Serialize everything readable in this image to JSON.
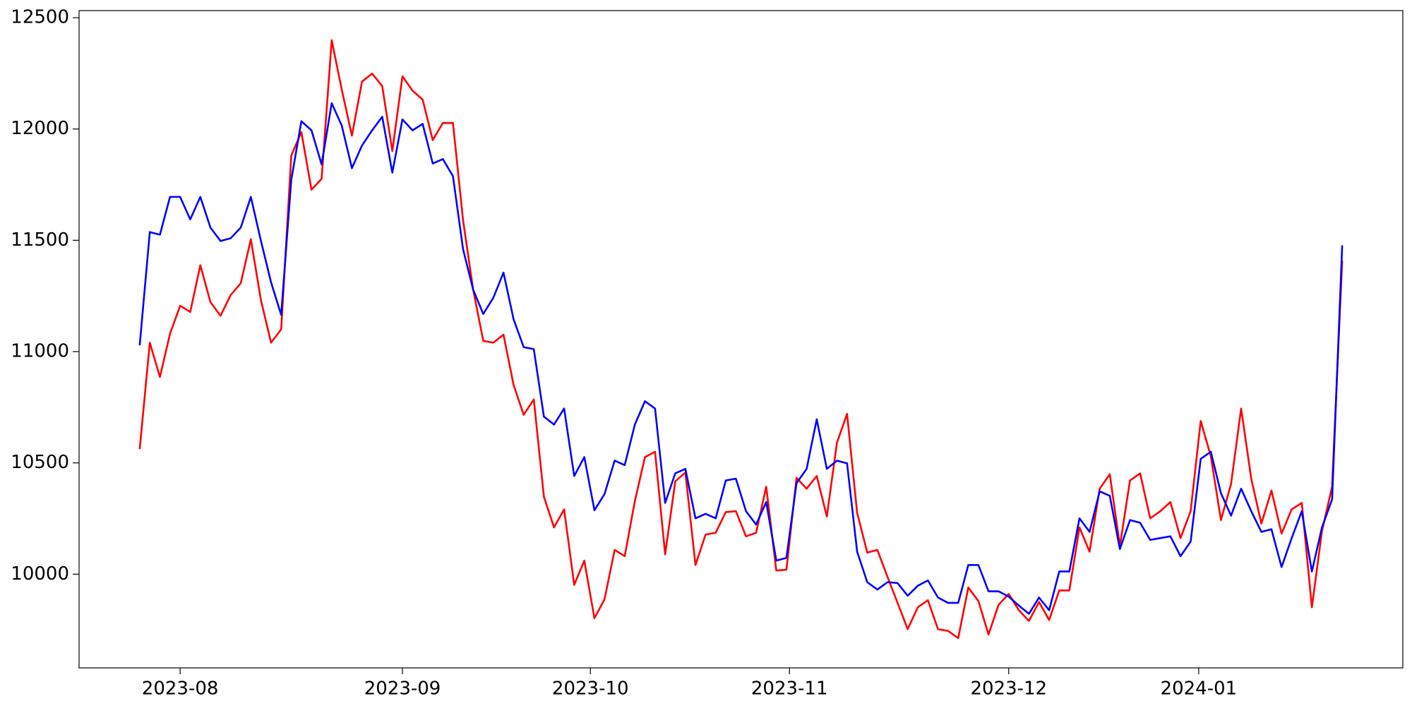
{
  "chart_data": {
    "type": "line",
    "categories": [
      null,
      null,
      null,
      null,
      null,
      null,
      null,
      null,
      null,
      null,
      null,
      null,
      null,
      null,
      null,
      null,
      null,
      null,
      null,
      null,
      null,
      null,
      null,
      null,
      null,
      null,
      null,
      null,
      null,
      null,
      null,
      null,
      null,
      null,
      null,
      null,
      null,
      null,
      null,
      null,
      null,
      null,
      null,
      null,
      null,
      null,
      null,
      null,
      null,
      null,
      null,
      null,
      null,
      null,
      null,
      null,
      null,
      null,
      null,
      null,
      null,
      null,
      null,
      null,
      null,
      null,
      null,
      null,
      null,
      null,
      null,
      null,
      null,
      null,
      null,
      null,
      null,
      null,
      null,
      null,
      null,
      null,
      null,
      null,
      null,
      null,
      null,
      null,
      null,
      null,
      null,
      null,
      null,
      null,
      null,
      null,
      null,
      null,
      null,
      null,
      null,
      null,
      null,
      null,
      null,
      null,
      null,
      null,
      null,
      null,
      null,
      null,
      null,
      null,
      null,
      null,
      null,
      null,
      null,
      null
    ],
    "series": [
      {
        "color": "#ff0000",
        "values": [
          10562,
          11040,
          10886,
          11080,
          11206,
          11178,
          11388,
          11222,
          11161,
          11254,
          11307,
          11505,
          11230,
          11040,
          11100,
          11881,
          11986,
          11727,
          11776,
          12399,
          12176,
          11970,
          12213,
          12249,
          12193,
          11901,
          12237,
          12172,
          12132,
          11950,
          12027,
          12027,
          11590,
          11278,
          11048,
          11040,
          11076,
          10850,
          10716,
          10785,
          10348,
          10210,
          10291,
          9952,
          10061,
          9802,
          9887,
          10109,
          10081,
          10328,
          10526,
          10550,
          10089,
          10417,
          10457,
          10041,
          10178,
          10186,
          10279,
          10283,
          10170,
          10186,
          10393,
          10016,
          10020,
          10433,
          10384,
          10441,
          10259,
          10591,
          10720,
          10275,
          10097,
          10109,
          9988,
          9871,
          9753,
          9851,
          9883,
          9753,
          9745,
          9713,
          9940,
          9879,
          9729,
          9863,
          9911,
          9838,
          9790,
          9875,
          9794,
          9927,
          9927,
          10210,
          10101,
          10384,
          10449,
          10126,
          10421,
          10453,
          10251,
          10283,
          10324,
          10162,
          10283,
          10688,
          10530,
          10243,
          10405,
          10744,
          10429,
          10227,
          10376,
          10182,
          10291,
          10320,
          9851,
          10194,
          10393,
          11408
        ]
      },
      {
        "color": "#0000ff",
        "values": [
          11028,
          11537,
          11525,
          11695,
          11695,
          11594,
          11695,
          11557,
          11497,
          11509,
          11557,
          11695,
          11497,
          11311,
          11165,
          11772,
          12035,
          11994,
          11841,
          12116,
          12015,
          11824,
          11926,
          11994,
          12055,
          11804,
          12043,
          11994,
          12023,
          11845,
          11865,
          11788,
          11460,
          11278,
          11169,
          11242,
          11355,
          11145,
          11020,
          11011,
          10708,
          10672,
          10744,
          10441,
          10526,
          10287,
          10360,
          10510,
          10490,
          10672,
          10777,
          10744,
          10320,
          10453,
          10473,
          10251,
          10271,
          10251,
          10421,
          10429,
          10283,
          10223,
          10324,
          10061,
          10073,
          10409,
          10473,
          10696,
          10473,
          10510,
          10498,
          10101,
          9964,
          9931,
          9964,
          9960,
          9903,
          9948,
          9972,
          9895,
          9871,
          9871,
          10041,
          10041,
          9923,
          9923,
          9899,
          9859,
          9822,
          9895,
          9838,
          10012,
          10012,
          10251,
          10190,
          10372,
          10352,
          10113,
          10243,
          10231,
          10154,
          10162,
          10170,
          10081,
          10146,
          10518,
          10550,
          10364,
          10263,
          10384,
          10283,
          10190,
          10202,
          10032,
          10162,
          10283,
          10012,
          10210,
          10336,
          11477
        ]
      }
    ],
    "xlim": [
      -6,
      125
    ],
    "xticks": [
      {
        "value": 4,
        "label": "2023-08"
      },
      {
        "value": 26,
        "label": "2023-09"
      },
      {
        "value": 44.6,
        "label": "2023-10"
      },
      {
        "value": 64.3,
        "label": "2023-11"
      },
      {
        "value": 86,
        "label": "2023-12"
      },
      {
        "value": 104.8,
        "label": "2024-01"
      }
    ],
    "ylim": [
      9579,
      12532
    ],
    "yticks": [
      10000,
      10500,
      11000,
      11500,
      12000,
      12500
    ],
    "grid": false
  }
}
